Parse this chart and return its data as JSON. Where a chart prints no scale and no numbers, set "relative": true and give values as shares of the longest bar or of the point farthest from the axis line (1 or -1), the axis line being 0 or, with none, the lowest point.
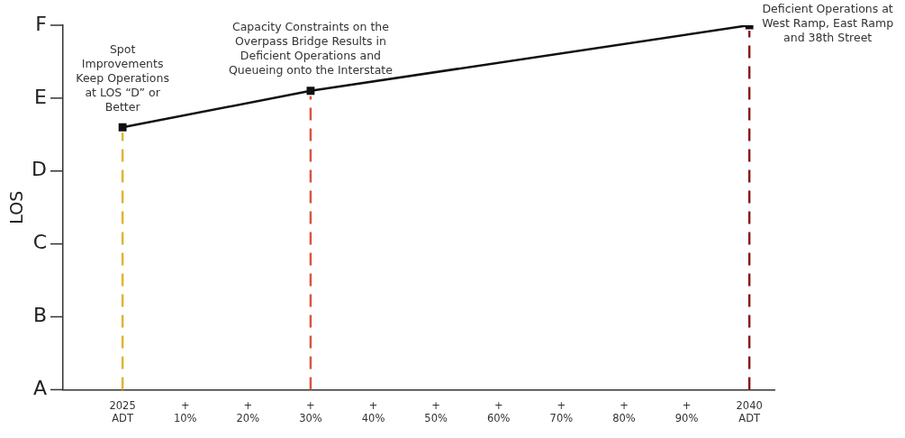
{
  "chart_data": {
    "type": "line",
    "ylabel": "LOS",
    "categories": [
      "2025 ADT",
      "+ 10%",
      "+ 20%",
      "+ 30%",
      "+ 40%",
      "+ 50%",
      "+ 60%",
      "+ 70%",
      "+ 80%",
      "+ 90%",
      "2040 ADT"
    ],
    "series": [
      {
        "color": "#111111",
        "values": [
          0.72,
          null,
          null,
          0.82,
          null,
          null,
          null,
          null,
          null,
          null,
          1.0
        ]
      }
    ],
    "relative": true,
    "ref_lines": [
      {
        "axis": "x",
        "value": "2025 ADT",
        "color": "#e0b430",
        "line_style": "dashed"
      },
      {
        "axis": "x",
        "value": "+ 30%",
        "color": "#d9553f",
        "line_style": "dashed"
      },
      {
        "axis": "x",
        "value": "2040 ADT",
        "color": "#8b1a1a",
        "line_style": "dashed"
      }
    ],
    "annotations": [
      "A",
      "B",
      "C",
      "D",
      "E",
      "F",
      {
        "text": "Spot\nImprovements\nKeep Operations\nat LOS “D” or\nBetter",
        "x": "2025 ADT",
        "y": 0.72
      },
      {
        "text": "Capacity Constraints on the\nOverpass Bridge Results in\nDeficient Operations and\nQueueing onto the Interstate",
        "x": "+ 30%",
        "y": 0.82
      },
      {
        "text": "Deficient Operations at\nWest Ramp, East Ramp\nand 38th Street",
        "x": "2040 ADT",
        "y": 1.0
      }
    ],
    "marker": "square",
    "line_style": "solid",
    "grid": false,
    "legend": false
  }
}
